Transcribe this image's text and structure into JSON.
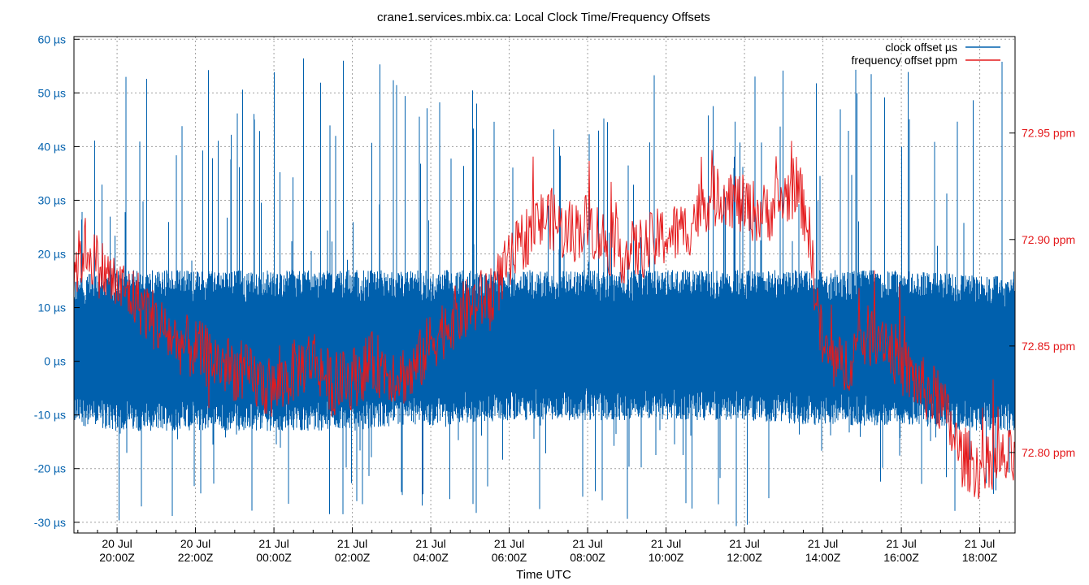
{
  "chart_data": {
    "type": "line",
    "title": "crane1.services.mbix.ca: Local Clock Time/Frequency Offsets",
    "xlabel": "Time UTC",
    "x_range_hours": [
      18.9,
      42.9
    ],
    "x_ticks": [
      {
        "hour": 20,
        "line1": "20 Jul",
        "line2": "20:00Z"
      },
      {
        "hour": 22,
        "line1": "20 Jul",
        "line2": "22:00Z"
      },
      {
        "hour": 24,
        "line1": "21 Jul",
        "line2": "00:00Z"
      },
      {
        "hour": 26,
        "line1": "21 Jul",
        "line2": "02:00Z"
      },
      {
        "hour": 28,
        "line1": "21 Jul",
        "line2": "04:00Z"
      },
      {
        "hour": 30,
        "line1": "21 Jul",
        "line2": "06:00Z"
      },
      {
        "hour": 32,
        "line1": "21 Jul",
        "line2": "08:00Z"
      },
      {
        "hour": 34,
        "line1": "21 Jul",
        "line2": "10:00Z"
      },
      {
        "hour": 36,
        "line1": "21 Jul",
        "line2": "12:00Z"
      },
      {
        "hour": 38,
        "line1": "21 Jul",
        "line2": "14:00Z"
      },
      {
        "hour": 40,
        "line1": "21 Jul",
        "line2": "16:00Z"
      },
      {
        "hour": 42,
        "line1": "21 Jul",
        "line2": "18:00Z"
      }
    ],
    "y_left": {
      "ylim": [
        -32,
        60.5
      ],
      "ticks": [
        {
          "value": 60,
          "label": "60 µs"
        },
        {
          "value": 50,
          "label": "50 µs"
        },
        {
          "value": 40,
          "label": "40 µs"
        },
        {
          "value": 30,
          "label": "30 µs"
        },
        {
          "value": 20,
          "label": "20 µs"
        },
        {
          "value": 10,
          "label": "10 µs"
        },
        {
          "value": 0,
          "label": "0 µs"
        },
        {
          "value": -10,
          "label": "-10 µs"
        },
        {
          "value": -20,
          "label": "-20 µs"
        },
        {
          "value": -30,
          "label": "-30 µs"
        }
      ]
    },
    "y_right": {
      "ylim": [
        72.7622,
        72.9953
      ],
      "ticks": [
        {
          "value": 72.95,
          "label": "72.95 ppm"
        },
        {
          "value": 72.9,
          "label": "72.90 ppm"
        },
        {
          "value": 72.85,
          "label": "72.85 ppm"
        },
        {
          "value": 72.8,
          "label": "72.80 ppm"
        }
      ]
    },
    "grid": true,
    "legend_position": "top-right",
    "series": [
      {
        "name": "clock offset µs",
        "axis": "left",
        "color": "#0060ad",
        "envelope_hours": [
          19,
          20,
          22,
          24,
          26,
          28,
          30,
          32,
          34,
          36,
          38,
          40,
          42,
          42.9
        ],
        "typical_low": [
          -12,
          -13,
          -13,
          -13,
          -13,
          -12,
          -11,
          -11,
          -11,
          -11,
          -12,
          -12,
          -13,
          -13
        ],
        "typical_high": [
          16,
          17,
          17,
          17,
          17,
          17,
          17,
          17,
          17,
          17,
          17,
          17,
          16,
          16
        ],
        "spike_min": -31,
        "spike_max": 57
      },
      {
        "name": "frequency offset ppm",
        "axis": "right",
        "color": "#e41a1c",
        "x_hours": [
          18.9,
          19.2,
          19.5,
          20.0,
          20.5,
          21.0,
          21.5,
          22.0,
          22.5,
          23.0,
          23.5,
          24.0,
          24.5,
          25.0,
          25.5,
          26.0,
          26.5,
          27.0,
          27.5,
          28.0,
          28.5,
          29.0,
          29.5,
          30.0,
          30.5,
          31.0,
          31.5,
          32.0,
          32.5,
          33.0,
          33.5,
          34.0,
          34.5,
          35.0,
          35.5,
          36.0,
          36.5,
          37.0,
          37.3,
          37.6,
          37.8,
          38.0,
          38.5,
          39.0,
          39.5,
          40.0,
          40.5,
          41.0,
          41.5,
          42.0,
          42.5,
          42.9
        ],
        "values": [
          72.885,
          72.897,
          72.888,
          72.878,
          72.872,
          72.861,
          72.852,
          72.848,
          72.843,
          72.839,
          72.834,
          72.829,
          72.838,
          72.845,
          72.831,
          72.835,
          72.842,
          72.838,
          72.836,
          72.852,
          72.862,
          72.868,
          72.874,
          72.888,
          72.904,
          72.911,
          72.902,
          72.908,
          72.898,
          72.893,
          72.897,
          72.902,
          72.904,
          72.918,
          72.922,
          72.915,
          72.912,
          72.919,
          72.926,
          72.91,
          72.878,
          72.848,
          72.839,
          72.853,
          72.857,
          72.841,
          72.831,
          72.824,
          72.799,
          72.792,
          72.795,
          72.797
        ]
      }
    ]
  }
}
